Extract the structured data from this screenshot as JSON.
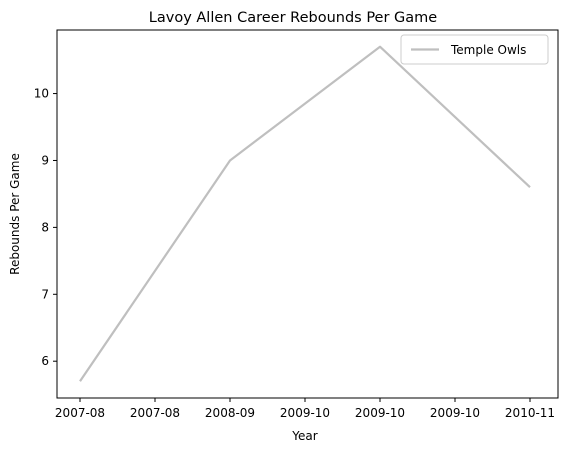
{
  "chart_data": {
    "type": "line",
    "title": "Lavoy Allen Career Rebounds Per Game",
    "xlabel": "Year",
    "ylabel": "Rebounds Per Game",
    "x_tick_labels": [
      "2007-08",
      "2007-08",
      "2008-09",
      "2009-10",
      "2009-10",
      "2009-10",
      "2010-11"
    ],
    "categories": [
      "2007-08",
      "2008-09",
      "2009-10",
      "2010-11"
    ],
    "series": [
      {
        "name": "Temple Owls",
        "values": [
          5.7,
          9.0,
          10.7,
          8.6
        ]
      }
    ],
    "ylim": [
      5.45,
      10.95
    ],
    "y_ticks": [
      6,
      7,
      8,
      9,
      10
    ],
    "legend_position": "top-right",
    "grid": false,
    "line_color": "#bfbfbf"
  }
}
